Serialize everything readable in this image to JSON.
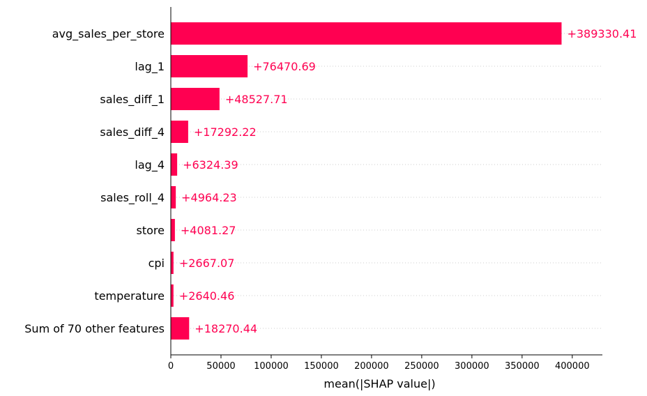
{
  "chart_data": {
    "type": "bar",
    "orientation": "horizontal",
    "title": "",
    "xlabel": "mean(|SHAP value|)",
    "ylabel": "",
    "xlim": [
      0,
      430000
    ],
    "xticks": [
      0,
      50000,
      100000,
      150000,
      200000,
      250000,
      300000,
      350000,
      400000
    ],
    "xtick_labels": [
      "0",
      "50000",
      "100000",
      "150000",
      "200000",
      "250000",
      "300000",
      "350000",
      "400000"
    ],
    "grid": "dotted horizontal guide lines per row",
    "bar_color": "#ff0051",
    "categories": [
      "avg_sales_per_store",
      "lag_1",
      "sales_diff_1",
      "sales_diff_4",
      "lag_4",
      "sales_roll_4",
      "store",
      "cpi",
      "temperature",
      "Sum of 70 other features"
    ],
    "values": [
      389330.41,
      76470.69,
      48527.71,
      17292.22,
      6324.39,
      4964.23,
      4081.27,
      2667.07,
      2640.46,
      18270.44
    ],
    "value_labels": [
      "+389330.41",
      "+76470.69",
      "+48527.71",
      "+17292.22",
      "+6324.39",
      "+4964.23",
      "+4081.27",
      "+2667.07",
      "+2640.46",
      "+18270.44"
    ]
  }
}
